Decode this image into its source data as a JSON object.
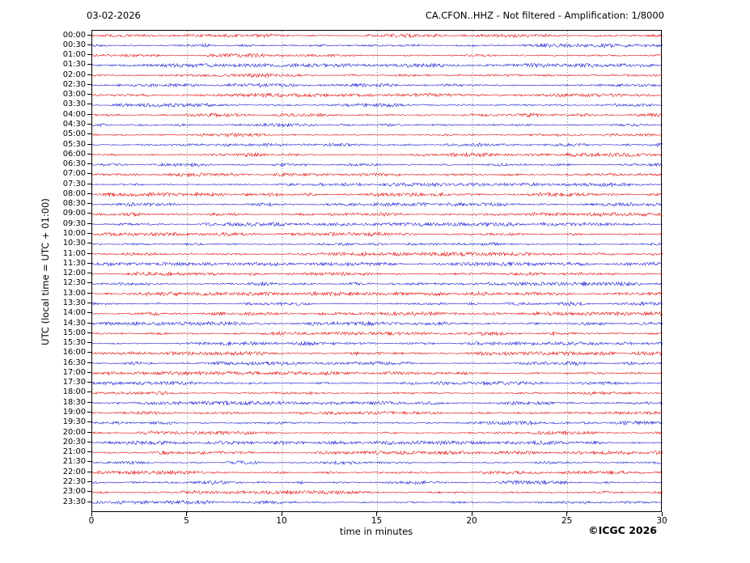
{
  "header": {
    "date": "03-02-2026",
    "title": "CA.CFON..HHZ - Not filtered - Amplification: 1/8000"
  },
  "axes": {
    "x_label": "time in minutes",
    "y_label": "UTC (local time = UTC + 01:00)"
  },
  "footer": {
    "copyright": "©ICGC 2026"
  },
  "colors": {
    "trace_red": "#e00000",
    "trace_blue": "#1010d0",
    "grid": "#555555",
    "axis": "#000000",
    "background": "#ffffff"
  },
  "chart_data": {
    "type": "line",
    "subtype": "helicorder-seismogram-daily-plot",
    "title": "CA.CFON..HHZ - Not filtered - Amplification: 1/8000",
    "date": "03-02-2026",
    "xlabel": "time in minutes",
    "ylabel": "UTC (local time = UTC + 01:00)",
    "x_range_minutes": [
      0,
      30
    ],
    "x_ticks": [
      0,
      5,
      10,
      15,
      20,
      25,
      30
    ],
    "minutes_per_row": 30,
    "grid": "vertical dotted gridlines every 5 minutes, full plot height",
    "signal": "continuous low-amplitude background noise on all 48 half-hour traces; no distinct seismic events; peak deviation roughly 2-3 px with small irregular bursts",
    "row_color_rule": "traces starting on the hour are red, traces starting on the half hour are blue",
    "rows": [
      {
        "utc": "00:00",
        "color": "red"
      },
      {
        "utc": "00:30",
        "color": "blue"
      },
      {
        "utc": "01:00",
        "color": "red"
      },
      {
        "utc": "01:30",
        "color": "blue"
      },
      {
        "utc": "02:00",
        "color": "red"
      },
      {
        "utc": "02:30",
        "color": "blue"
      },
      {
        "utc": "03:00",
        "color": "red"
      },
      {
        "utc": "03:30",
        "color": "blue"
      },
      {
        "utc": "04:00",
        "color": "red"
      },
      {
        "utc": "04:30",
        "color": "blue"
      },
      {
        "utc": "05:00",
        "color": "red"
      },
      {
        "utc": "05:30",
        "color": "blue"
      },
      {
        "utc": "06:00",
        "color": "red"
      },
      {
        "utc": "06:30",
        "color": "blue"
      },
      {
        "utc": "07:00",
        "color": "red"
      },
      {
        "utc": "07:30",
        "color": "blue"
      },
      {
        "utc": "08:00",
        "color": "red"
      },
      {
        "utc": "08:30",
        "color": "blue"
      },
      {
        "utc": "09:00",
        "color": "red"
      },
      {
        "utc": "09:30",
        "color": "blue"
      },
      {
        "utc": "10:00",
        "color": "red"
      },
      {
        "utc": "10:30",
        "color": "blue"
      },
      {
        "utc": "11:00",
        "color": "red"
      },
      {
        "utc": "11:30",
        "color": "blue"
      },
      {
        "utc": "12:00",
        "color": "red"
      },
      {
        "utc": "12:30",
        "color": "blue"
      },
      {
        "utc": "13:00",
        "color": "red"
      },
      {
        "utc": "13:30",
        "color": "blue"
      },
      {
        "utc": "14:00",
        "color": "red"
      },
      {
        "utc": "14:30",
        "color": "blue"
      },
      {
        "utc": "15:00",
        "color": "red"
      },
      {
        "utc": "15:30",
        "color": "blue"
      },
      {
        "utc": "16:00",
        "color": "red"
      },
      {
        "utc": "16:30",
        "color": "blue"
      },
      {
        "utc": "17:00",
        "color": "red"
      },
      {
        "utc": "17:30",
        "color": "blue"
      },
      {
        "utc": "18:00",
        "color": "red"
      },
      {
        "utc": "18:30",
        "color": "blue"
      },
      {
        "utc": "19:00",
        "color": "red"
      },
      {
        "utc": "19:30",
        "color": "blue"
      },
      {
        "utc": "20:00",
        "color": "red"
      },
      {
        "utc": "20:30",
        "color": "blue"
      },
      {
        "utc": "21:00",
        "color": "red"
      },
      {
        "utc": "21:30",
        "color": "blue"
      },
      {
        "utc": "22:00",
        "color": "red"
      },
      {
        "utc": "22:30",
        "color": "blue"
      },
      {
        "utc": "23:00",
        "color": "red"
      },
      {
        "utc": "23:30",
        "color": "blue"
      }
    ]
  }
}
